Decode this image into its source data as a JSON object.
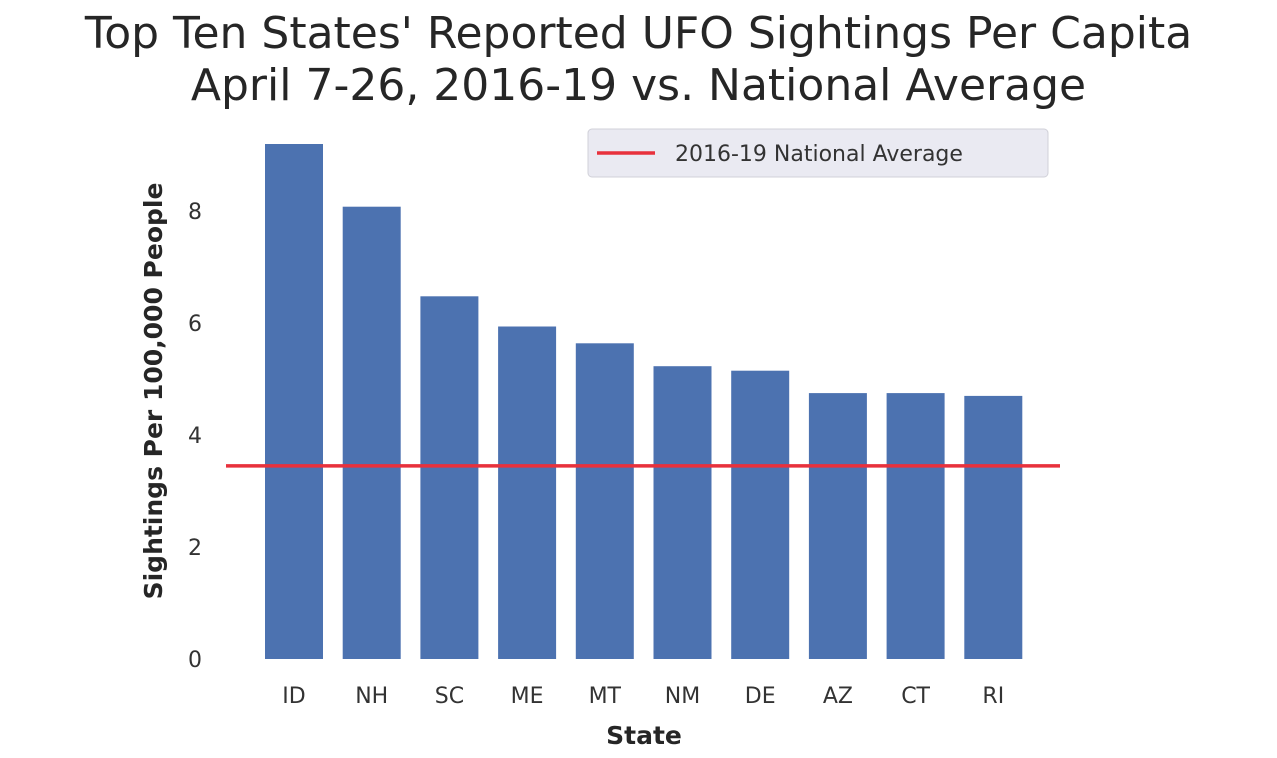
{
  "chart_data": {
    "type": "bar",
    "title_lines": [
      "Top Ten States' Reported UFO Sightings Per Capita",
      "April 7-26, 2016-19 vs. National Average"
    ],
    "xlabel": "State",
    "ylabel": "Sightings Per 100,000 People",
    "categories": [
      "ID",
      "NH",
      "SC",
      "ME",
      "MT",
      "NM",
      "DE",
      "AZ",
      "CT",
      "RI"
    ],
    "values": [
      9.2,
      8.08,
      6.48,
      5.94,
      5.64,
      5.23,
      5.15,
      4.75,
      4.75,
      4.7
    ],
    "yticks": [
      0,
      2,
      4,
      6,
      8
    ],
    "ylim": [
      0,
      9.2
    ],
    "grid": false,
    "bar_color": "#4c72b0",
    "reference_line": {
      "label": "2016-19 National Average",
      "value": 3.45,
      "color": "#e8313c"
    },
    "legend_position": "upper right"
  }
}
